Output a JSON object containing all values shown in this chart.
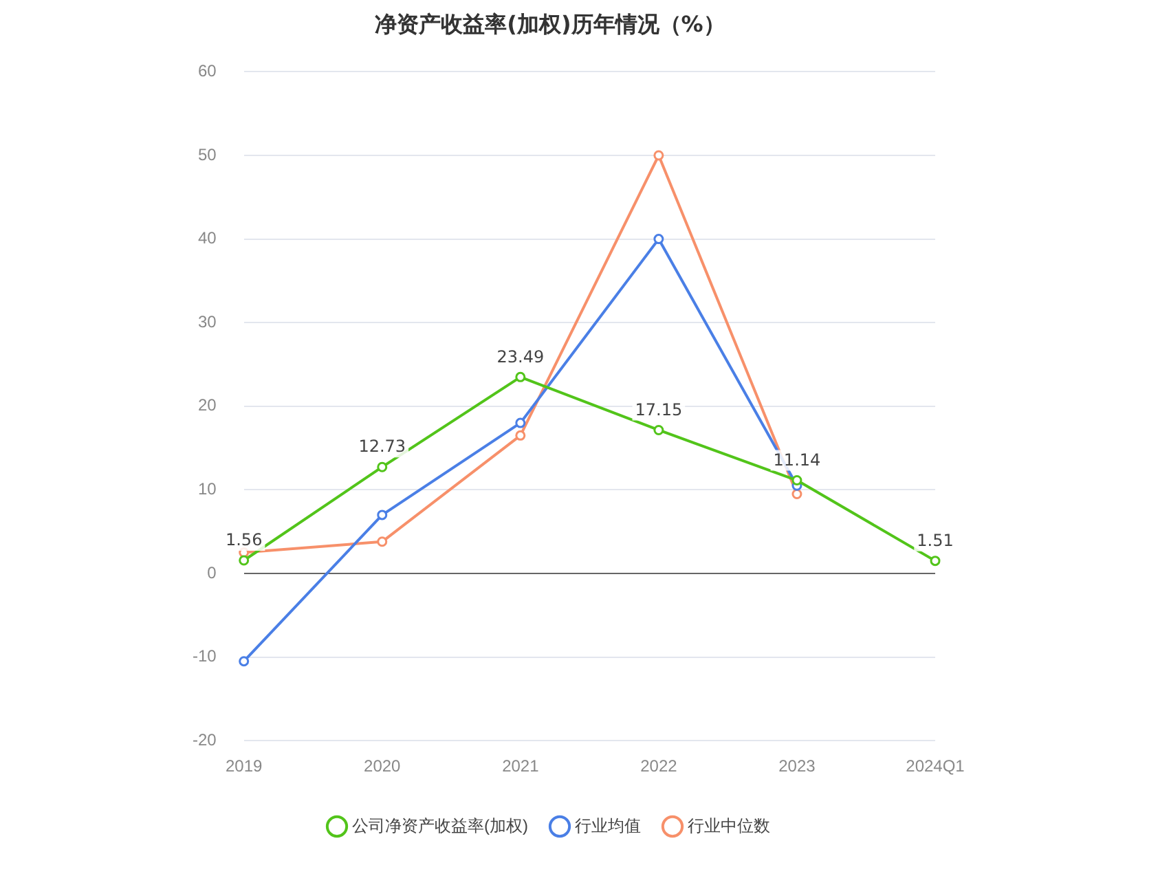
{
  "chart_data": {
    "type": "line",
    "title": "净资产收益率(加权)历年情况（%）",
    "categories": [
      "2019",
      "2020",
      "2021",
      "2022",
      "2023",
      "2024Q1"
    ],
    "series": [
      {
        "name": "公司净资产收益率(加权)",
        "color": "#52c41a",
        "values": [
          1.56,
          12.73,
          23.49,
          17.15,
          11.14,
          1.51
        ],
        "value_labels": [
          "1.56",
          "12.73",
          "23.49",
          "17.15",
          "11.14",
          "1.51"
        ]
      },
      {
        "name": "行业均值",
        "color": "#4a7fe6",
        "values": [
          -10.5,
          7,
          18,
          40,
          10.5,
          null
        ]
      },
      {
        "name": "行业中位数",
        "color": "#f7906a",
        "values": [
          2.5,
          3.8,
          16.5,
          50,
          9.5,
          null
        ]
      }
    ],
    "ylim": [
      -20,
      60
    ],
    "yticks": [
      -20,
      -10,
      0,
      10,
      20,
      30,
      40,
      50,
      60
    ],
    "grid": "y",
    "legend": "bottom",
    "marker": "circle",
    "line_style": "solid"
  }
}
